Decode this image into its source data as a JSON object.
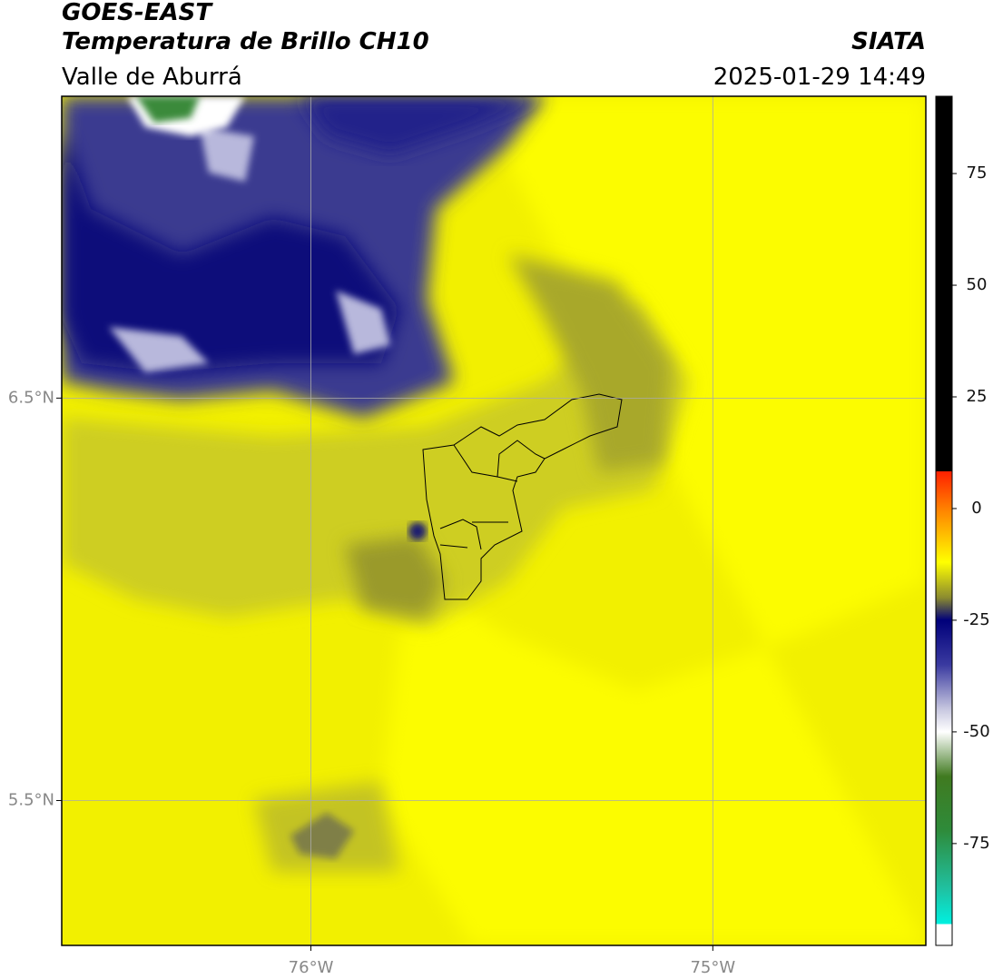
{
  "header": {
    "title": "GOES-EAST",
    "subtitle": "Temperatura de Brillo CH10",
    "region": "Valle de Aburrá",
    "source": "SIATA",
    "datetime": "2025-01-29 14:49"
  },
  "map": {
    "lonlim": [
      -76.62,
      -74.47
    ],
    "latlim": [
      5.14,
      7.25
    ],
    "lon_ticks": [
      {
        "value": -76,
        "label": "76°W"
      },
      {
        "value": -75,
        "label": "75°W"
      }
    ],
    "lat_ticks": [
      {
        "value": 6.5,
        "label": "6.5°N"
      },
      {
        "value": 5.5,
        "label": "5.5°N"
      }
    ],
    "grid": true
  },
  "colorbar": {
    "clim": [
      -97.8,
      92.3
    ],
    "ticks": [
      75,
      50,
      25,
      0,
      -25,
      -50,
      -75
    ],
    "stops": [
      [
        92.3,
        "#000000"
      ],
      [
        8.3,
        "#000000"
      ],
      [
        8.3,
        "#ff2000"
      ],
      [
        0,
        "#ff8000"
      ],
      [
        -12,
        "#ffff00"
      ],
      [
        -20,
        "#8a8a30"
      ],
      [
        -25,
        "#00007a"
      ],
      [
        -35,
        "#3a3aa0"
      ],
      [
        -45,
        "#c8c8e0"
      ],
      [
        -50,
        "#ffffff"
      ],
      [
        -60,
        "#407a20"
      ],
      [
        -72,
        "#2e8b3a"
      ],
      [
        -85,
        "#20c0a0"
      ],
      [
        -93,
        "#00f0e0"
      ],
      [
        -93,
        "#ffffff"
      ],
      [
        -97.8,
        "#ffffff"
      ]
    ]
  }
}
